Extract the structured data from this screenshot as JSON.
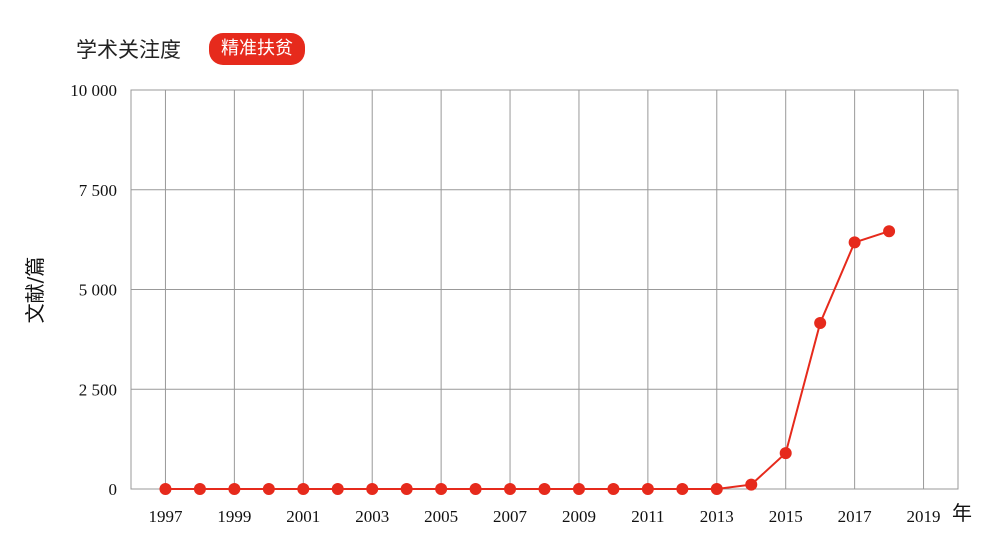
{
  "header": {
    "title": "学术关注度",
    "tag": "精准扶贫"
  },
  "colors": {
    "accent": "#e62a1c",
    "grid": "#999999"
  },
  "chart_data": {
    "type": "line",
    "title": "学术关注度",
    "ylabel": "文献/篇",
    "xlabel": "年",
    "xlim": [
      1996,
      2020
    ],
    "ylim": [
      0,
      10000
    ],
    "grid": true,
    "x_ticks": [
      1997,
      1999,
      2001,
      2003,
      2005,
      2007,
      2009,
      2011,
      2013,
      2015,
      2017,
      2019
    ],
    "y_ticks": [
      0,
      2500,
      5000,
      7500,
      10000
    ],
    "y_tick_labels": [
      "0",
      "2 500",
      "5 000",
      "7 500",
      "10 000"
    ],
    "series": [
      {
        "name": "精准扶贫",
        "x": [
          1997,
          1998,
          1999,
          2000,
          2001,
          2002,
          2003,
          2004,
          2005,
          2006,
          2007,
          2008,
          2009,
          2010,
          2011,
          2012,
          2013,
          2014,
          2015,
          2016,
          2017,
          2018
        ],
        "y": [
          0,
          0,
          0,
          0,
          0,
          0,
          0,
          0,
          0,
          0,
          0,
          0,
          0,
          0,
          0,
          0,
          0,
          110,
          900,
          4160,
          6180,
          6460
        ]
      }
    ]
  }
}
